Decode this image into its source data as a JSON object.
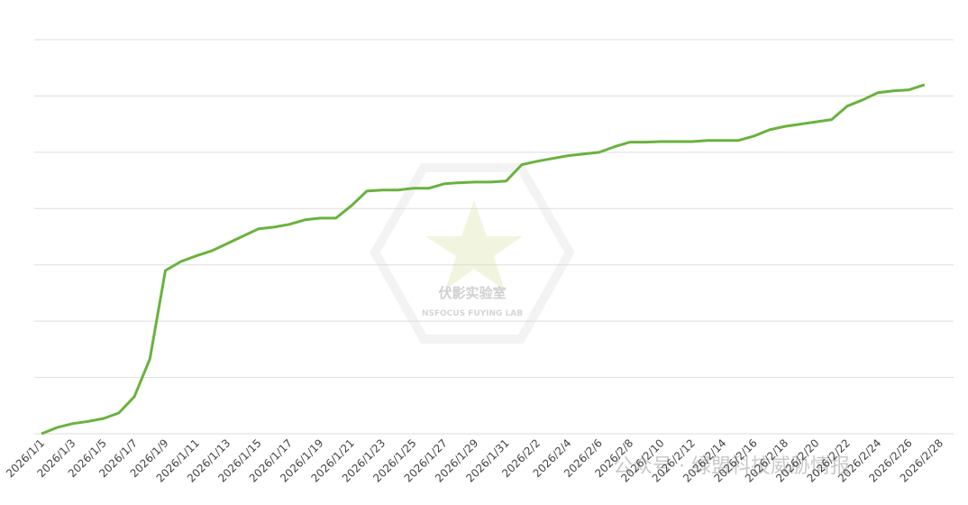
{
  "chart_data": {
    "type": "line",
    "categories": [
      "2026/1/1",
      null,
      "2026/1/3",
      null,
      "2026/1/5",
      null,
      "2026/1/7",
      null,
      "2026/1/9",
      null,
      "2026/1/11",
      null,
      "2026/1/13",
      null,
      "2026/1/15",
      null,
      "2026/1/17",
      null,
      "2026/1/19",
      null,
      "2026/1/21",
      null,
      "2026/1/23",
      null,
      "2026/1/25",
      null,
      "2026/1/27",
      null,
      "2026/1/29",
      null,
      "2026/1/31",
      null,
      "2026/2/2",
      null,
      "2026/2/4",
      null,
      "2026/2/6",
      null,
      "2026/2/8",
      null,
      "2026/2/10",
      null,
      "2026/2/12",
      null,
      "2026/2/14",
      null,
      "2026/2/16",
      null,
      "2026/2/18",
      null,
      "2026/2/20",
      null,
      "2026/2/22",
      null,
      "2026/2/24",
      null,
      "2026/2/26",
      null,
      "2026/2/28"
    ],
    "series": [
      {
        "color": "#6ab23e",
        "values": [
          0,
          0.11,
          0.18,
          0.22,
          0.27,
          0.37,
          0.66,
          1.33,
          2.9,
          3.06,
          3.16,
          3.25,
          3.38,
          3.51,
          3.64,
          3.67,
          3.72,
          3.8,
          3.83,
          3.83,
          4.05,
          4.31,
          4.33,
          4.33,
          4.36,
          4.36,
          4.44,
          4.46,
          4.47,
          4.47,
          4.49,
          4.78,
          4.84,
          4.89,
          4.94,
          4.97,
          5.0,
          5.1,
          5.18,
          5.18,
          5.19,
          5.19,
          5.19,
          5.21,
          5.21,
          5.21,
          5.29,
          5.4,
          5.46,
          5.5,
          5.54,
          5.58,
          5.82,
          5.93,
          6.06,
          6.09,
          6.11,
          6.2,
          null
        ]
      }
    ],
    "ylim": [
      0,
      7
    ],
    "yticks": [
      0,
      1,
      2,
      3,
      4,
      5,
      6,
      7
    ],
    "grid": true,
    "annotations": [
      "伏影实验室",
      "NSFOCUS FUYING LAB",
      "公众号 · 绿盟科技威胁情报"
    ]
  }
}
